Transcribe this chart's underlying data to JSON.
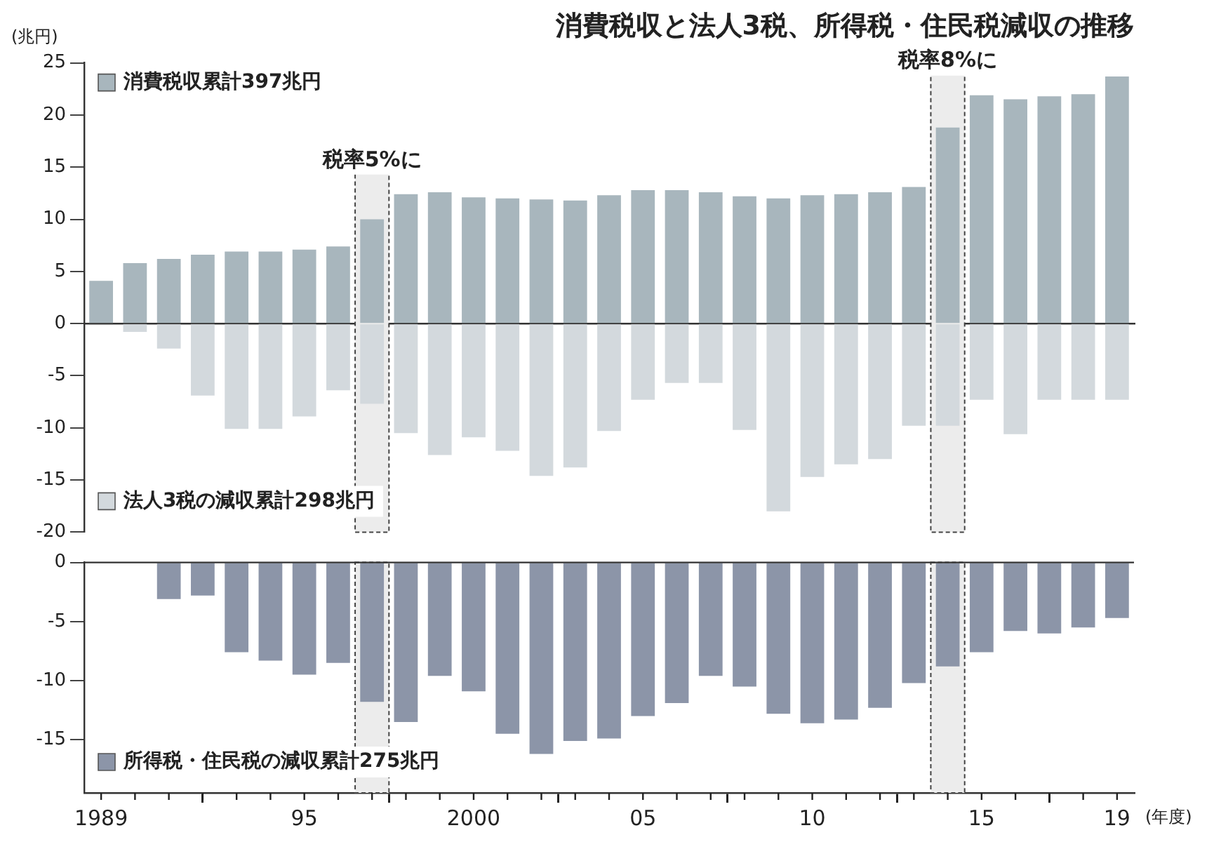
{
  "chart_data": [
    {
      "type": "bar",
      "title": "消費税収と法人3税、所得税・住民税減収の推移",
      "ylabel": "(兆円)",
      "x": [
        1989,
        1990,
        1991,
        1992,
        1993,
        1994,
        1995,
        1996,
        1997,
        1998,
        1999,
        2000,
        2001,
        2002,
        2003,
        2004,
        2005,
        2006,
        2007,
        2008,
        2009,
        2010,
        2011,
        2012,
        2013,
        2014,
        2015,
        2016,
        2017,
        2018,
        2019
      ],
      "series": [
        {
          "name": "消費税収累計397兆円",
          "color": "#a8b6bd",
          "values": [
            4.1,
            5.8,
            6.2,
            6.6,
            6.9,
            6.9,
            7.1,
            7.4,
            10.0,
            12.4,
            12.6,
            12.1,
            12.0,
            11.9,
            11.8,
            12.3,
            12.8,
            12.8,
            12.6,
            12.2,
            12.0,
            12.3,
            12.4,
            12.6,
            13.1,
            18.8,
            21.9,
            21.5,
            21.8,
            22.0,
            23.7
          ]
        },
        {
          "name": "法人3税の減収累計298兆円",
          "color": "#d3d9dd",
          "x": [
            1990,
            1991,
            1992,
            1993,
            1994,
            1995,
            1996,
            1997,
            1998,
            1999,
            2000,
            2001,
            2002,
            2003,
            2004,
            2005,
            2006,
            2007,
            2008,
            2009,
            2010,
            2011,
            2012,
            2013,
            2014,
            2015,
            2016,
            2017,
            2018,
            2019
          ],
          "values": [
            -0.8,
            -2.4,
            -6.9,
            -10.1,
            -10.1,
            -8.9,
            -6.4,
            -7.7,
            -10.5,
            -12.6,
            -10.9,
            -12.2,
            -14.6,
            -13.8,
            -10.3,
            -7.3,
            -5.7,
            -5.7,
            -10.2,
            -18.0,
            -14.7,
            -13.5,
            -13.0,
            -9.8,
            -9.8,
            -7.3,
            -10.6,
            -7.3,
            -7.3,
            -7.3
          ]
        }
      ],
      "xlim": [
        1988.5,
        2019.5
      ],
      "ylim": [
        -20,
        25
      ],
      "yticks": [
        25,
        20,
        15,
        10,
        5,
        0,
        -5,
        -10,
        -15,
        -20
      ],
      "tick_labels": "y",
      "legend": "left",
      "bands": [
        {
          "axis": "x",
          "from": 1996.5,
          "to": 1997.5,
          "label": "税率5%に",
          "color": "#ececec"
        },
        {
          "axis": "x",
          "from": 2013.5,
          "to": 2014.5,
          "label": "税率8%に",
          "color": "#ececec"
        }
      ]
    },
    {
      "type": "bar",
      "xlabel": "(年度)",
      "legend": "bottom left",
      "series": [
        {
          "name": "所得税・住民税の減収累計275兆円",
          "color": "#8c95a8",
          "x": [
            1991,
            1992,
            1993,
            1994,
            1995,
            1996,
            1997,
            1998,
            1999,
            2000,
            2001,
            2002,
            2003,
            2004,
            2005,
            2006,
            2007,
            2008,
            2009,
            2010,
            2011,
            2012,
            2013,
            2014,
            2015,
            2016,
            2017,
            2018,
            2019
          ],
          "values": [
            -3.1,
            -2.8,
            -7.6,
            -8.3,
            -9.5,
            -8.5,
            -11.8,
            -13.5,
            -9.6,
            -10.9,
            -14.5,
            -16.2,
            -15.1,
            -14.9,
            -13.0,
            -11.9,
            -9.6,
            -10.5,
            -12.8,
            -13.6,
            -13.3,
            -12.3,
            -10.2,
            -8.8,
            -7.6,
            -5.8,
            -6.0,
            -5.5,
            -4.7
          ]
        }
      ],
      "xlim": [
        1988.5,
        2019.5
      ],
      "ylim": [
        -19.5,
        0
      ],
      "yticks": [
        0,
        -5,
        -10,
        -15
      ],
      "xticks": [
        1989,
        {
          "value": 1995,
          "label": "95"
        },
        2000,
        {
          "value": 2005,
          "label": "05"
        },
        {
          "value": 2010,
          "label": "10"
        },
        {
          "value": 2015,
          "label": "15"
        },
        {
          "value": 2019,
          "label": "19"
        }
      ],
      "bands": [
        {
          "axis": "x",
          "from": 1996.5,
          "to": 1997.5,
          "color": "#ececec"
        },
        {
          "axis": "x",
          "from": 2013.5,
          "to": 2014.5,
          "color": "#ececec"
        }
      ]
    }
  ]
}
